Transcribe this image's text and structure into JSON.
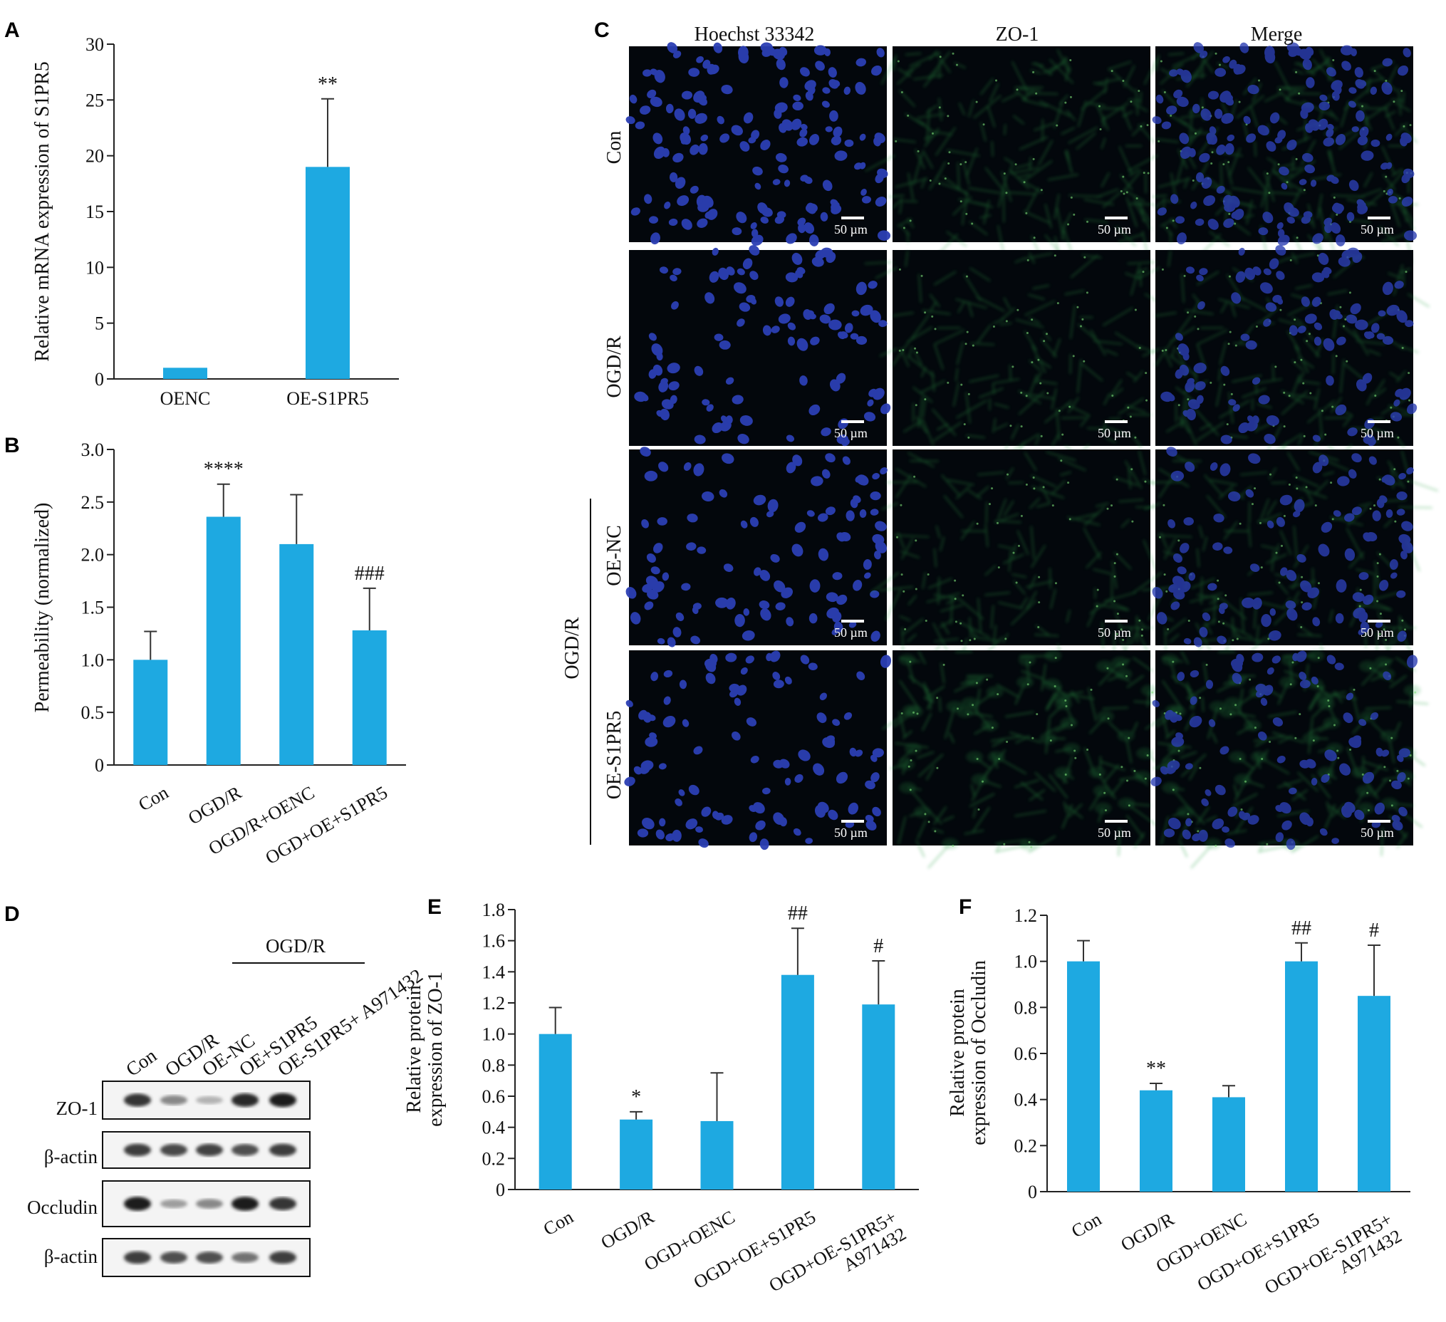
{
  "colors": {
    "bar": "#1ea9e1",
    "micro_bg": "#03070c",
    "nuclei": "#2c3fb4",
    "zo1": "#2fa34a"
  },
  "panels": {
    "A": "A",
    "B": "B",
    "C": "C",
    "D": "D",
    "E": "E",
    "F": "F"
  },
  "chart_data": [
    {
      "id": "A",
      "type": "bar",
      "categories": [
        "OENC",
        "OE-S1PR5"
      ],
      "values": [
        1.0,
        19.0
      ],
      "errors": [
        0.0,
        6.1
      ],
      "annotations": [
        "",
        "**"
      ],
      "ylabel": "Relative mRNA expression of S1PR5",
      "ylim": [
        0,
        30
      ],
      "yticks": [
        "0",
        "5",
        "10",
        "15",
        "20",
        "25",
        "30"
      ]
    },
    {
      "id": "B",
      "type": "bar",
      "categories": [
        "Con",
        "OGD/R",
        "OGD/R+OENC",
        "OGD+OE+S1PR5"
      ],
      "values": [
        1.0,
        2.36,
        2.1,
        1.28
      ],
      "errors": [
        0.27,
        0.31,
        0.47,
        0.4
      ],
      "annotations": [
        "",
        "****",
        "",
        "###"
      ],
      "ylabel": "Permeability (normalized)",
      "ylim": [
        0,
        3
      ],
      "yticks": [
        "0",
        "0.5",
        "1.0",
        "1.5",
        "2.0",
        "2.5",
        "3.0"
      ]
    },
    {
      "id": "E",
      "type": "bar",
      "categories": [
        "Con",
        "OGD/R",
        "OGD+OENC",
        "OGD+OE+S1PR5",
        "OGD+OE-S1PR5+ A971432"
      ],
      "values": [
        1.0,
        0.45,
        0.44,
        1.38,
        1.19
      ],
      "errors": [
        0.17,
        0.05,
        0.31,
        0.3,
        0.28
      ],
      "annotations": [
        "",
        "*",
        "",
        "##",
        "#"
      ],
      "ylabel": [
        "Relative protein",
        "expression of ZO-1"
      ],
      "ylim": [
        0,
        1.8
      ],
      "yticks": [
        "0",
        "0.2",
        "0.4",
        "0.6",
        "0.8",
        "1.0",
        "1.2",
        "1.4",
        "1.6",
        "1.8"
      ]
    },
    {
      "id": "F",
      "type": "bar",
      "categories": [
        "Con",
        "OGD/R",
        "OGD+OENC",
        "OGD+OE+S1PR5",
        "OGD+OE-S1PR5+ A971432"
      ],
      "values": [
        1.0,
        0.44,
        0.41,
        1.0,
        0.85
      ],
      "errors": [
        0.09,
        0.03,
        0.05,
        0.08,
        0.22
      ],
      "annotations": [
        "",
        "**",
        "",
        "##",
        "#"
      ],
      "ylabel": [
        "Relative protein",
        "expression of Occludin"
      ],
      "ylim": [
        0,
        1.2
      ],
      "yticks": [
        "0",
        "0.2",
        "0.4",
        "0.6",
        "0.8",
        "1.0",
        "1.2"
      ]
    }
  ],
  "microscopy": {
    "columns": [
      "Hoechst 33342",
      "ZO-1",
      "Merge"
    ],
    "rows": [
      "Con",
      "OGD/R",
      "OE-NC",
      "OE-S1PR5"
    ],
    "group_label": "OGD/R",
    "scalebar": "50 µm"
  },
  "western": {
    "group_label": "OGD/R",
    "lanes": [
      "Con",
      "OGD/R",
      "OE-NC",
      "OE+S1PR5",
      "OE-S1PR5+ A971432"
    ],
    "blots": [
      "ZO-1",
      "β-actin",
      "Occludin",
      "β-actin"
    ],
    "intensity": [
      [
        0.85,
        0.45,
        0.25,
        0.9,
        0.95
      ],
      [
        0.8,
        0.75,
        0.78,
        0.72,
        0.8
      ],
      [
        0.95,
        0.35,
        0.45,
        0.95,
        0.85
      ],
      [
        0.8,
        0.72,
        0.72,
        0.55,
        0.8
      ]
    ]
  }
}
